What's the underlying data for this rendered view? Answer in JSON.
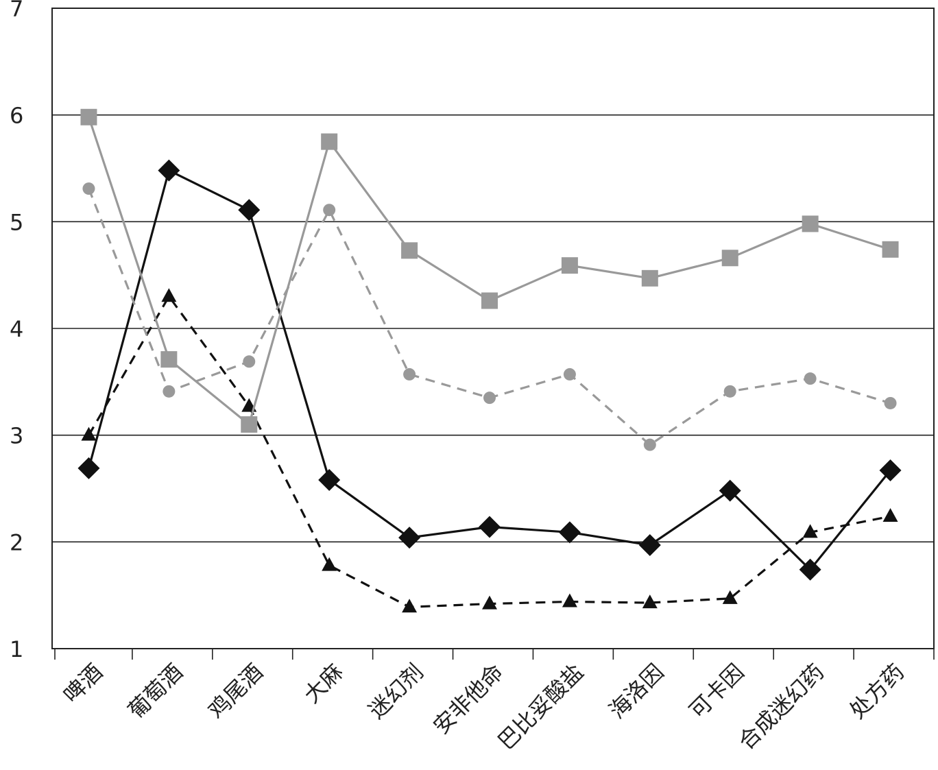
{
  "chart_data": {
    "type": "line",
    "title": "",
    "xlabel": "",
    "ylabel": "",
    "ylim": [
      1,
      7
    ],
    "yticks": [
      "1",
      "2",
      "3",
      "4",
      "5",
      "6",
      "7"
    ],
    "grid": true,
    "legend": "none",
    "categories": [
      "啤酒",
      "葡萄酒",
      "鸡尾酒",
      "大麻",
      "迷幻剂",
      "安非他命",
      "巴比妥酸盐",
      "海洛因",
      "可卡因",
      "合成迷幻药",
      "处方药"
    ],
    "series": [
      {
        "marker": "diamond",
        "color": "#111111",
        "dash": "solid",
        "values": [
          2.69,
          5.48,
          5.11,
          2.58,
          2.04,
          2.14,
          2.09,
          1.97,
          2.48,
          1.74,
          2.67
        ]
      },
      {
        "marker": "triangle",
        "color": "#111111",
        "dash": "dashed",
        "values": [
          3.0,
          4.3,
          3.27,
          1.78,
          1.39,
          1.42,
          1.44,
          1.43,
          1.47,
          2.09,
          2.24
        ]
      },
      {
        "marker": "square",
        "color": "#999999",
        "dash": "solid",
        "values": [
          5.98,
          3.71,
          3.1,
          5.75,
          4.73,
          4.26,
          4.59,
          4.47,
          4.66,
          4.98,
          4.74
        ]
      },
      {
        "marker": "circle",
        "color": "#999999",
        "dash": "dashed",
        "values": [
          5.31,
          3.41,
          3.69,
          5.11,
          3.57,
          3.35,
          3.57,
          2.91,
          3.41,
          3.53,
          3.3
        ]
      }
    ]
  }
}
